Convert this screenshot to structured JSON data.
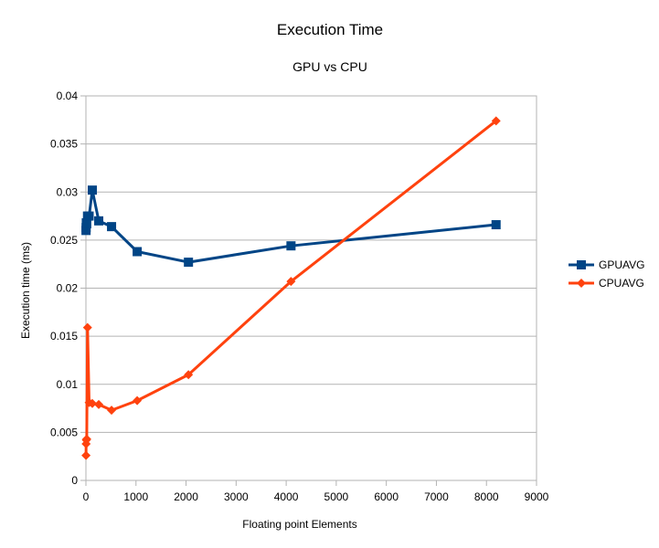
{
  "chart_data": {
    "type": "line",
    "title": "Execution Time",
    "subtitle": "GPU vs CPU",
    "xlabel": "Floating point Elements",
    "ylabel": "Execution time (ms)",
    "xlim": [
      0,
      9000
    ],
    "ylim": [
      0,
      0.04
    ],
    "x_ticks": [
      "0",
      "1000",
      "2000",
      "3000",
      "4000",
      "5000",
      "6000",
      "7000",
      "8000",
      "9000"
    ],
    "y_ticks": [
      "0",
      "0.005",
      "0.01",
      "0.015",
      "0.02",
      "0.025",
      "0.03",
      "0.035",
      "0.04"
    ],
    "grid": "horizontal",
    "legend_position": "right",
    "x": [
      2,
      4,
      8,
      16,
      32,
      64,
      128,
      256,
      512,
      1024,
      2048,
      4096,
      8192
    ],
    "series": [
      {
        "name": "GPUAVG",
        "color": "#004586",
        "marker": "square",
        "values": [
          0.026,
          0.0263,
          0.0268,
          0.0267,
          0.0275,
          0.0275,
          0.0302,
          0.027,
          0.0264,
          0.0238,
          0.0227,
          0.0244,
          0.0266
        ]
      },
      {
        "name": "CPUAVG",
        "color": "#ff420e",
        "marker": "diamond",
        "values": [
          0.0026,
          0.0038,
          0.0042,
          0.0043,
          0.0159,
          0.0081,
          0.008,
          0.0079,
          0.0073,
          0.0083,
          0.011,
          0.0207,
          0.0374
        ]
      }
    ]
  }
}
